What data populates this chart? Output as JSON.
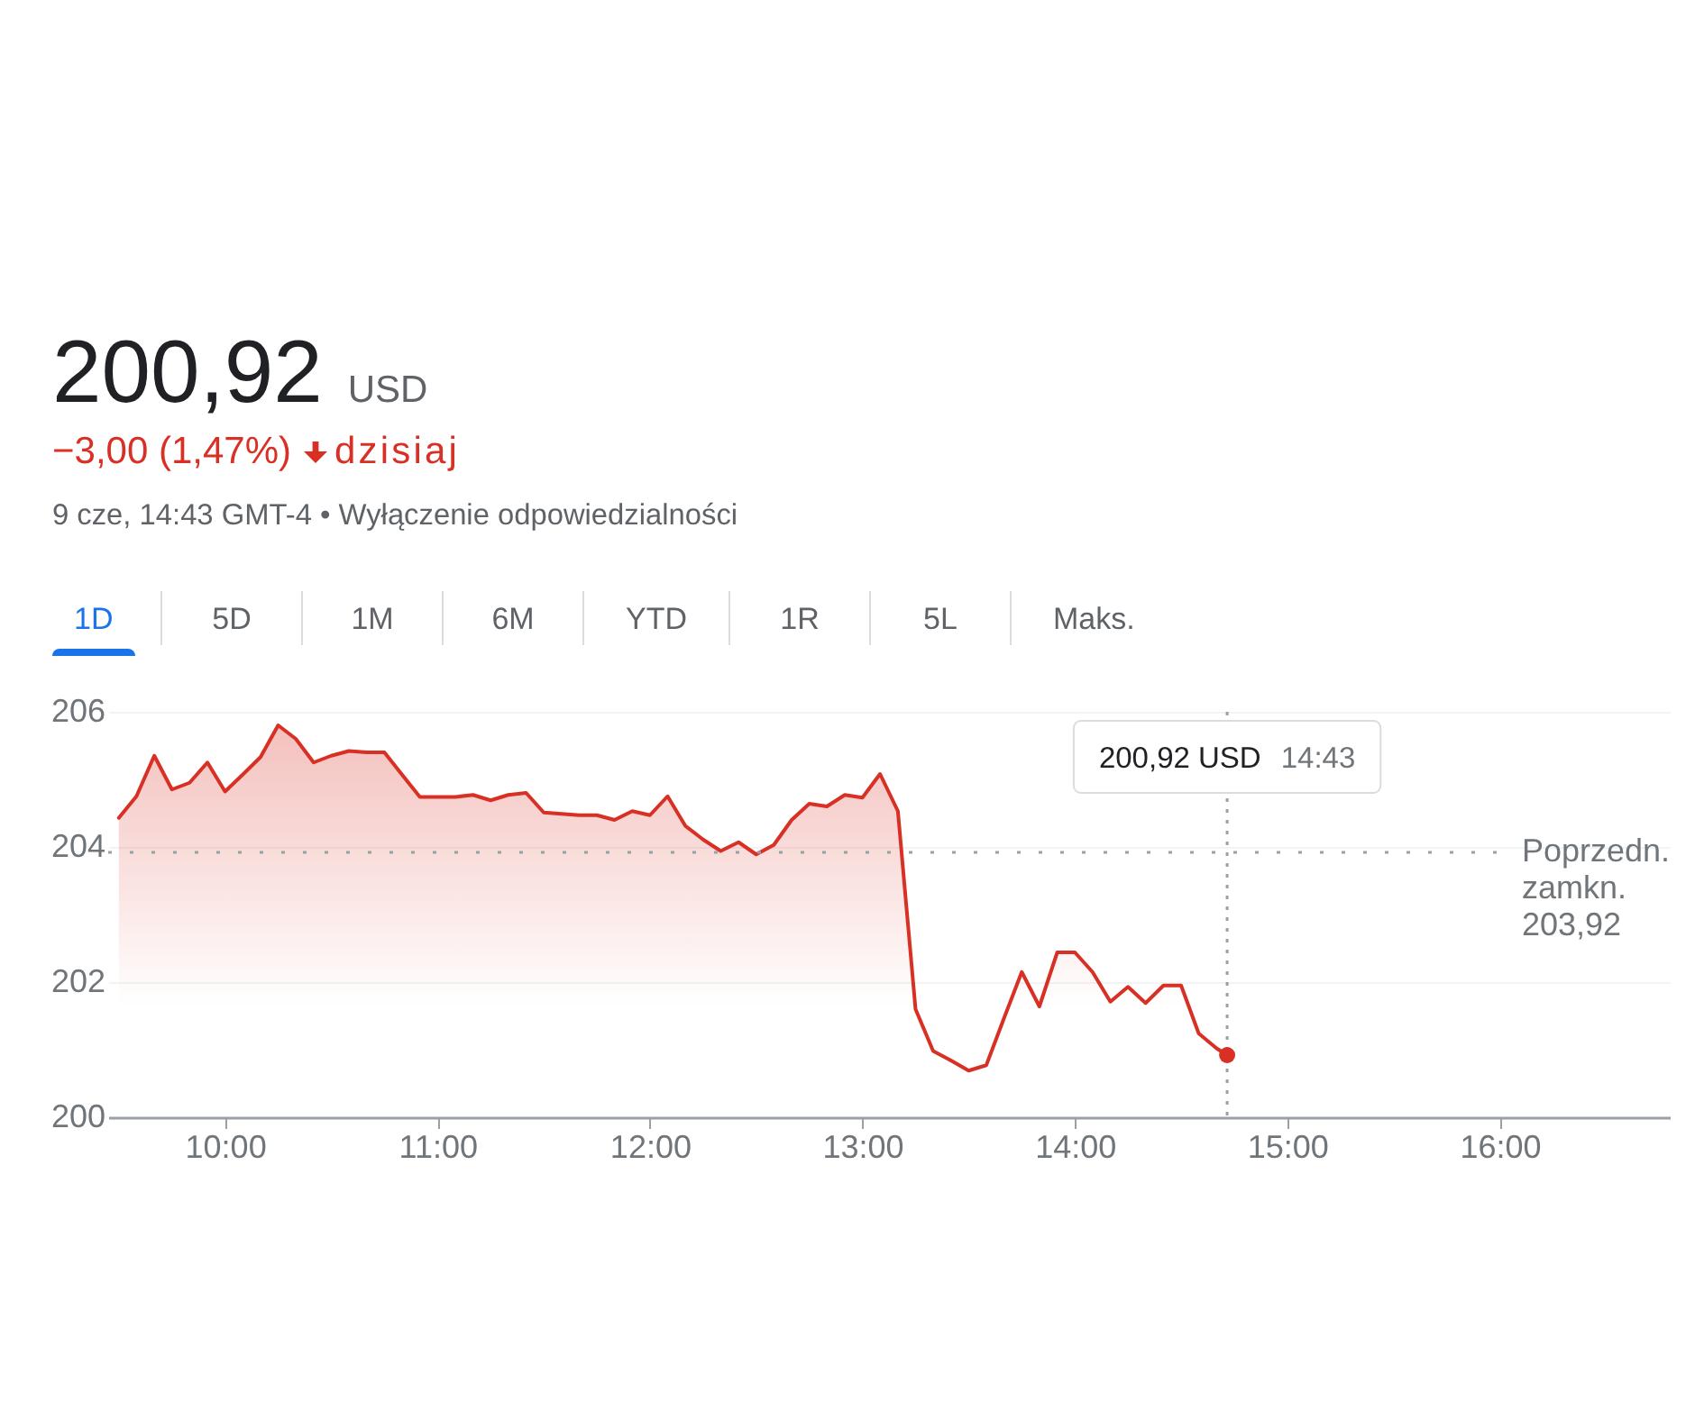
{
  "chart_data": {
    "type": "area",
    "title": "200,92 USD",
    "subtitle": "−3,00 (1,47%) dzisiaj",
    "annotations": [
      "9 cze, 14:43 GMT-4 • Wyłączenie odpowiedzialności",
      "1D",
      "5D",
      "1M",
      "6M",
      "YTD",
      "1R",
      "5L",
      "Maks.",
      {
        "text": "200,92 USD",
        "x": 14.7167
      },
      {
        "text": "14:43",
        "x": 14.7167
      }
    ],
    "x": [
      9.5,
      9.583,
      9.667,
      9.75,
      9.833,
      9.917,
      10,
      10.083,
      10.167,
      10.25,
      10.333,
      10.417,
      10.5,
      10.583,
      10.667,
      10.75,
      10.833,
      10.917,
      11,
      11.083,
      11.167,
      11.25,
      11.333,
      11.417,
      11.5,
      11.583,
      11.667,
      11.75,
      11.833,
      11.917,
      12,
      12.083,
      12.167,
      12.25,
      12.333,
      12.417,
      12.5,
      12.583,
      12.667,
      12.75,
      12.833,
      12.917,
      13,
      13.083,
      13.167,
      13.25,
      13.333,
      13.417,
      13.5,
      13.583,
      13.667,
      13.75,
      13.833,
      13.917,
      14,
      14.083,
      14.167,
      14.25,
      14.333,
      14.417,
      14.5,
      14.583,
      14.667,
      14.7167
    ],
    "series": [
      {
        "color": "#d93025",
        "values": [
          204.43,
          204.75,
          205.35,
          204.85,
          204.95,
          205.25,
          204.82,
          205.07,
          205.33,
          205.8,
          205.6,
          205.25,
          205.35,
          205.42,
          205.4,
          205.4,
          205.07,
          204.74,
          204.74,
          204.74,
          204.77,
          204.69,
          204.77,
          204.8,
          204.51,
          204.49,
          204.47,
          204.47,
          204.4,
          204.53,
          204.47,
          204.75,
          204.31,
          204.11,
          203.94,
          204.07,
          203.89,
          204.03,
          204.4,
          204.64,
          204.6,
          204.77,
          204.73,
          205.08,
          204.53,
          201.6,
          200.98,
          200.84,
          200.69,
          200.77,
          201.47,
          202.15,
          201.64,
          202.44,
          202.44,
          202.15,
          201.71,
          201.93,
          201.69,
          201.95,
          201.95,
          201.24,
          201.02,
          200.92
        ]
      },
      {
        "type": "scatter",
        "color": "#d93025",
        "x": [
          14.7167
        ],
        "values": [
          200.92
        ]
      }
    ],
    "xlim": [
      9.45,
      16.8
    ],
    "xticks": [
      {
        "value": 10,
        "label": "10:00"
      },
      {
        "value": 11,
        "label": "11:00"
      },
      {
        "value": 12,
        "label": "12:00"
      },
      {
        "value": 13,
        "label": "13:00"
      },
      {
        "value": 14,
        "label": "14:00"
      },
      {
        "value": 15,
        "label": "15:00"
      },
      {
        "value": 16,
        "label": "16:00"
      }
    ],
    "ylim": [
      200,
      206
    ],
    "yticks": [
      200,
      202,
      204,
      206
    ],
    "grid": "y",
    "ref_lines": [
      {
        "axis": "y",
        "value": 203.92,
        "label": "Poprzedn. zamkn. 203,92",
        "line_style": "dotted",
        "color": "#9aa0a6"
      },
      {
        "axis": "x",
        "value": 14.7167,
        "line_style": "dotted",
        "color": "#9aa0a6"
      }
    ]
  }
}
